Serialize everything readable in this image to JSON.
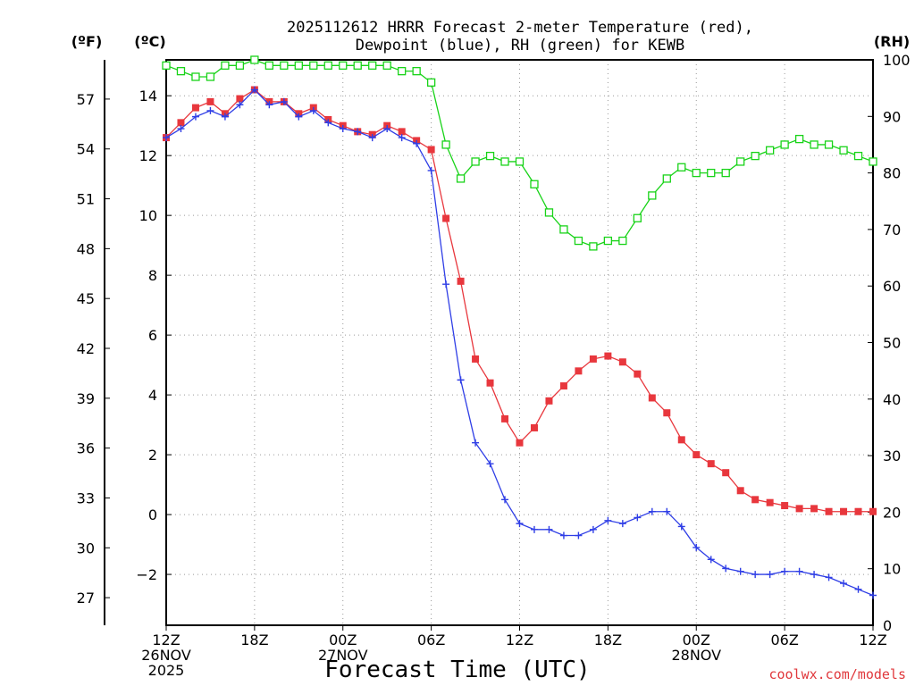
{
  "chart_data": {
    "type": "line",
    "title": [
      "2025112612 HRRR Forecast 2-meter Temperature (red),",
      "Dewpoint (blue), RH (green) for KEWB"
    ],
    "xlabel": "Forecast Time (UTC)",
    "credit": "coolwx.com/models",
    "units": {
      "left_outer": "(ºF)",
      "left_inner": "(ºC)",
      "right": "(RH)"
    },
    "x_range_hours": [
      0,
      48
    ],
    "x_ticks": [
      {
        "hour": 0,
        "lines": [
          "12Z",
          "26NOV",
          "2025"
        ]
      },
      {
        "hour": 6,
        "lines": [
          "18Z"
        ]
      },
      {
        "hour": 12,
        "lines": [
          "00Z",
          "27NOV"
        ]
      },
      {
        "hour": 18,
        "lines": [
          "06Z"
        ]
      },
      {
        "hour": 24,
        "lines": [
          "12Z"
        ]
      },
      {
        "hour": 30,
        "lines": [
          "18Z"
        ]
      },
      {
        "hour": 36,
        "lines": [
          "00Z",
          "28NOV"
        ]
      },
      {
        "hour": 42,
        "lines": [
          "06Z"
        ]
      },
      {
        "hour": 48,
        "lines": [
          "12Z"
        ]
      }
    ],
    "y_celsius": {
      "range": [
        -3.7,
        15.2
      ],
      "ticks": [
        14,
        12,
        10,
        8,
        6,
        4,
        2,
        0,
        -2
      ],
      "tick_labels": [
        "14",
        "12",
        "10",
        "8",
        "6",
        "4",
        "2",
        "0",
        "−2"
      ]
    },
    "y_fahrenheit": {
      "ticks": [
        57,
        54,
        51,
        48,
        45,
        42,
        39,
        36,
        33,
        30,
        27
      ]
    },
    "y_rh": {
      "range": [
        0,
        100
      ],
      "ticks": [
        100,
        90,
        80,
        70,
        60,
        50,
        40,
        30,
        20,
        10,
        0
      ]
    },
    "series": [
      {
        "name": "Temperature",
        "axis": "celsius",
        "color": "#e8373d",
        "marker": "filled-square",
        "values": [
          12.6,
          13.1,
          13.6,
          13.8,
          13.4,
          13.9,
          14.2,
          13.8,
          13.8,
          13.4,
          13.6,
          13.2,
          13.0,
          12.8,
          12.7,
          13.0,
          12.8,
          12.5,
          12.2,
          9.9,
          7.8,
          5.2,
          4.4,
          3.2,
          2.4,
          2.9,
          3.8,
          4.3,
          4.8,
          5.2,
          5.3,
          5.1,
          4.7,
          3.9,
          3.4,
          2.5,
          2.0,
          1.7,
          1.4,
          0.8,
          0.5,
          0.4,
          0.3,
          0.2,
          0.2,
          0.1,
          0.1,
          0.1,
          0.1
        ]
      },
      {
        "name": "Dewpoint",
        "axis": "celsius",
        "color": "#2f3ee6",
        "marker": "plus",
        "values": [
          12.6,
          12.9,
          13.3,
          13.5,
          13.3,
          13.7,
          14.2,
          13.7,
          13.8,
          13.3,
          13.5,
          13.1,
          12.9,
          12.8,
          12.6,
          12.9,
          12.6,
          12.4,
          11.5,
          7.7,
          4.5,
          2.4,
          1.7,
          0.5,
          -0.3,
          -0.5,
          -0.5,
          -0.7,
          -0.7,
          -0.5,
          -0.2,
          -0.3,
          -0.1,
          0.1,
          0.1,
          -0.4,
          -1.1,
          -1.5,
          -1.8,
          -1.9,
          -2.0,
          -2.0,
          -1.9,
          -1.9,
          -2.0,
          -2.1,
          -2.3,
          -2.5,
          -2.7
        ]
      },
      {
        "name": "RH",
        "axis": "rh",
        "color": "#18d318",
        "marker": "open-square",
        "values": [
          99,
          98,
          97,
          97,
          99,
          99,
          100,
          99,
          99,
          99,
          99,
          99,
          99,
          99,
          99,
          99,
          98,
          98,
          96,
          85,
          79,
          82,
          83,
          82,
          82,
          78,
          73,
          70,
          68,
          67,
          68,
          68,
          72,
          76,
          79,
          81,
          80,
          80,
          80,
          82,
          83,
          84,
          85,
          86,
          85,
          85,
          84,
          83,
          82
        ]
      }
    ]
  }
}
